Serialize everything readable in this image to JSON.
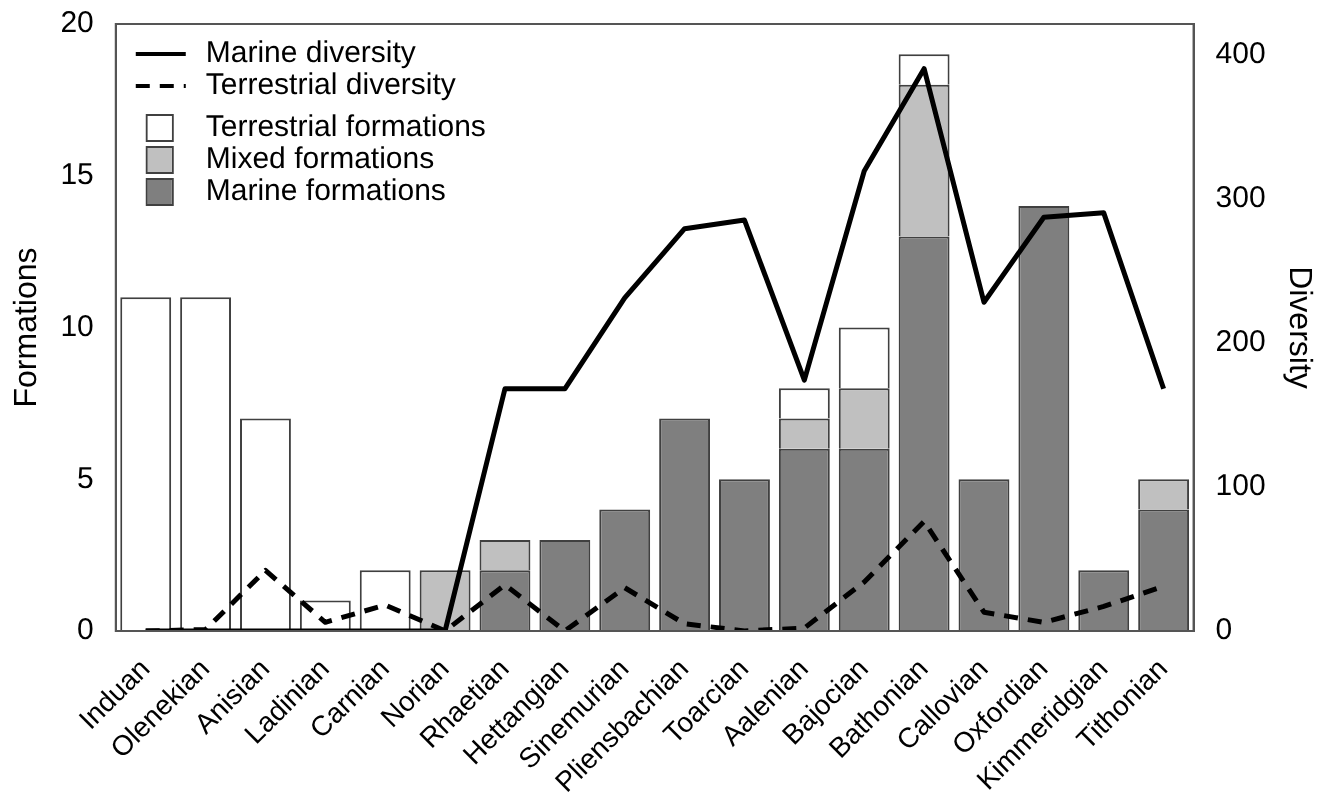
{
  "chart_data": {
    "type": "bar",
    "stacked": true,
    "ylabel": "Formations",
    "y2label": "Diversity",
    "categories": [
      "Induan",
      "Olenekian",
      "Anisian",
      "Ladinian",
      "Carnian",
      "Norian",
      "Rhaetian",
      "Hettangian",
      "Sinemurian",
      "Pliensbachian",
      "Toarcian",
      "Aalenian",
      "Bajocian",
      "Bathonian",
      "Callovian",
      "Oxfordian",
      "Kimmeridgian",
      "Tithonian"
    ],
    "ylim": [
      0,
      20
    ],
    "yticks": [
      0,
      5,
      10,
      15,
      20
    ],
    "y2lim": [
      0,
      421
    ],
    "y2ticks": [
      0,
      100,
      200,
      300,
      400
    ],
    "grid": false,
    "legend": "top left",
    "series": [
      {
        "name": "Marine diversity",
        "type": "line",
        "axis": "y2",
        "color": "#000000",
        "line_style": "solid",
        "marker": "none",
        "values": [
          0,
          0,
          0,
          0,
          0,
          0,
          168,
          168,
          231,
          279,
          285,
          174,
          319,
          390,
          228,
          287,
          290,
          168
        ]
      },
      {
        "name": "Terrestrial diversity",
        "type": "line",
        "axis": "y2",
        "color": "#000000",
        "line_style": "dashed",
        "marker": "none",
        "values": [
          0,
          1,
          42,
          6,
          18,
          0,
          32,
          0,
          30,
          5,
          0,
          2,
          34,
          76,
          13,
          6,
          17,
          31
        ]
      },
      {
        "name": "Terrestrial formations",
        "color": "#ffffff",
        "values": [
          11,
          11,
          7,
          1,
          2,
          0,
          0,
          0,
          0,
          0,
          0,
          1,
          2,
          1,
          0,
          0,
          0,
          0
        ]
      },
      {
        "name": "Mixed formations",
        "color": "#c0c0c0",
        "values": [
          0,
          0,
          0,
          0,
          0,
          2,
          1,
          0,
          0,
          0,
          0,
          1,
          2,
          5,
          0,
          0,
          0,
          1
        ]
      },
      {
        "name": "Marine formations",
        "color": "#7f7f7f",
        "values": [
          0,
          0,
          0,
          0,
          0,
          0,
          2,
          3,
          4,
          7,
          5,
          6,
          6,
          13,
          5,
          14,
          2,
          4
        ]
      }
    ]
  }
}
